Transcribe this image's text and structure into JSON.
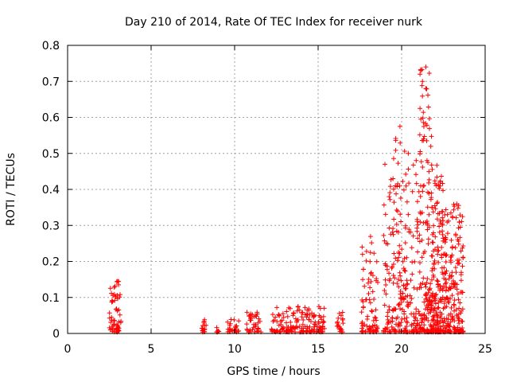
{
  "chart_data": {
    "type": "scatter",
    "title": "Day 210 of 2014, Rate Of TEC Index for receiver nurk",
    "xlabel": "GPS time / hours",
    "ylabel": "ROTI / TECUs",
    "xlim": [
      0,
      25
    ],
    "ylim": [
      0,
      0.8
    ],
    "x_ticks": [
      "0",
      "5",
      "10",
      "15",
      "20",
      "25"
    ],
    "y_ticks": [
      "0",
      "0.1",
      "0.2",
      "0.3",
      "0.4",
      "0.5",
      "0.6",
      "0.7",
      "0.8"
    ],
    "grid": true,
    "marker": "plus",
    "series_color": "#ff0000",
    "series": [
      {
        "clusters": [
          {
            "x_start": 2.5,
            "x_end": 3.2,
            "y_max": 0.145,
            "count": 60
          },
          {
            "x_start": 8.0,
            "x_end": 8.3,
            "y_max": 0.045,
            "count": 15
          },
          {
            "x_start": 8.9,
            "x_end": 9.1,
            "y_max": 0.02,
            "count": 6
          },
          {
            "x_start": 9.5,
            "x_end": 10.3,
            "y_max": 0.04,
            "count": 25
          },
          {
            "x_start": 10.7,
            "x_end": 11.6,
            "y_max": 0.06,
            "count": 40
          },
          {
            "x_start": 12.2,
            "x_end": 15.4,
            "y_max": 0.075,
            "count": 160
          },
          {
            "x_start": 16.1,
            "x_end": 16.5,
            "y_max": 0.07,
            "count": 20
          },
          {
            "x_start": 17.6,
            "x_end": 18.6,
            "y_max": 0.29,
            "count": 80
          },
          {
            "x_start": 18.9,
            "x_end": 19.5,
            "y_max": 0.47,
            "count": 60
          },
          {
            "x_start": 19.5,
            "x_end": 20.2,
            "y_max": 0.575,
            "count": 90
          },
          {
            "x_start": 20.2,
            "x_end": 21.0,
            "y_max": 0.5,
            "count": 90
          },
          {
            "x_start": 21.0,
            "x_end": 21.8,
            "y_max": 0.74,
            "count": 160
          },
          {
            "x_start": 21.8,
            "x_end": 22.5,
            "y_max": 0.47,
            "count": 160
          },
          {
            "x_start": 22.5,
            "x_end": 23.7,
            "y_max": 0.36,
            "count": 200
          }
        ],
        "highlights": [
          {
            "x": 3.0,
            "y": 0.145
          },
          {
            "x": 3.05,
            "y": 0.135
          },
          {
            "x": 13.8,
            "y": 0.075
          },
          {
            "x": 19.0,
            "y": 0.47
          },
          {
            "x": 19.9,
            "y": 0.575
          },
          {
            "x": 20.4,
            "y": 0.5
          },
          {
            "x": 21.1,
            "y": 0.72
          },
          {
            "x": 21.15,
            "y": 0.73
          },
          {
            "x": 21.25,
            "y": 0.7
          },
          {
            "x": 21.45,
            "y": 0.74
          },
          {
            "x": 21.45,
            "y": 0.68
          },
          {
            "x": 21.1,
            "y": 0.625
          },
          {
            "x": 21.15,
            "y": 0.595
          },
          {
            "x": 21.5,
            "y": 0.535
          },
          {
            "x": 22.3,
            "y": 0.42
          }
        ]
      }
    ]
  }
}
